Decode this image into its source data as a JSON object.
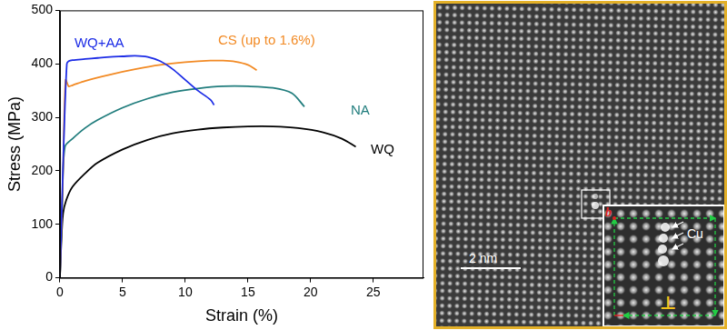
{
  "chart_data": {
    "type": "line",
    "x_label": "Strain (%)",
    "y_label": "Stress (MPa)",
    "xlim": [
      0,
      29
    ],
    "xticks": [
      0,
      5,
      10,
      15,
      20,
      25
    ],
    "ylim": [
      0,
      500
    ],
    "yticks": [
      0,
      100,
      200,
      300,
      400,
      500
    ],
    "grid": false,
    "series": [
      {
        "name": "WQ+AA",
        "color": "#1c2ce6",
        "x": [
          0,
          0.3,
          0.55,
          0.7,
          1,
          2,
          3,
          4,
          5,
          6,
          7,
          8,
          9,
          10,
          11,
          12,
          12.3
        ],
        "values": [
          0,
          250,
          400,
          405,
          407,
          409,
          411,
          413,
          414,
          415,
          413,
          405,
          390,
          370,
          350,
          333,
          323
        ]
      },
      {
        "name": "CS (up to 1.6%)",
        "color": "#f28a24",
        "x": [
          0,
          0.25,
          0.45,
          0.7,
          1,
          2,
          4,
          6,
          8,
          10,
          12,
          13,
          14,
          15,
          15.7
        ],
        "values": [
          0,
          200,
          370,
          358,
          360,
          368,
          380,
          390,
          398,
          403,
          406,
          406,
          404,
          398,
          388
        ]
      },
      {
        "name": "NA",
        "color": "#217d7d",
        "x": [
          0,
          0.2,
          0.4,
          1,
          2,
          3,
          5,
          7,
          9,
          11,
          13,
          15,
          17,
          18.5,
          19.5
        ],
        "values": [
          0,
          150,
          245,
          260,
          280,
          295,
          318,
          335,
          347,
          354,
          358,
          358,
          355,
          345,
          320
        ]
      },
      {
        "name": "WQ",
        "color": "#000000",
        "x": [
          0,
          0.1,
          0.25,
          0.5,
          1,
          2,
          3,
          5,
          7,
          9,
          11,
          13,
          15,
          17,
          19,
          21,
          22.5,
          23.6
        ],
        "values": [
          0,
          60,
          120,
          145,
          170,
          195,
          215,
          240,
          258,
          270,
          277,
          281,
          283,
          283,
          280,
          272,
          260,
          245
        ]
      }
    ]
  },
  "image_panel": {
    "scale_bar": "2 nm",
    "inset": {
      "burgers_vector": "b",
      "solute": "Cu",
      "dislocation": "⊥"
    }
  }
}
